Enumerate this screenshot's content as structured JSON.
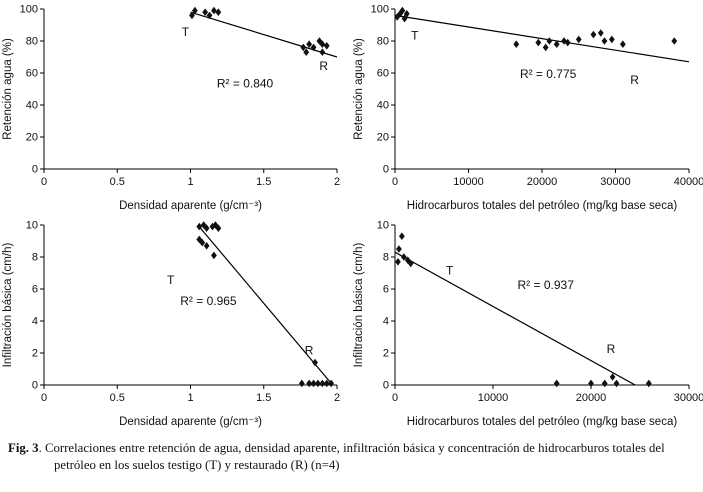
{
  "figure": {
    "caption_bold": "Fig. 3",
    "caption_rest": ".  Correlaciones entre retención de agua, densidad aparente, infiltración básica y concentración de hidrocarburos totales del petróleo en los suelos testigo (T) y restaurado (R) (n=4)"
  },
  "chart_data": [
    {
      "name": "retencion-agua-vs-densidad",
      "type": "scatter",
      "xlabel": "Densidad aparente (g/cm⁻³)",
      "ylabel": "Retención agua (%)",
      "xlim": [
        0,
        2
      ],
      "ylim": [
        0,
        100
      ],
      "grid": false,
      "legend": "none",
      "marker": "diamond",
      "marker_color": "#111111",
      "xticks": [
        {
          "v": 0,
          "l": "0"
        },
        {
          "v": 0.5,
          "l": "0.5"
        },
        {
          "v": 1,
          "l": "1"
        },
        {
          "v": 1.5,
          "l": "1.5"
        },
        {
          "v": 2,
          "l": "2"
        }
      ],
      "yticks": [
        {
          "v": 0,
          "l": "0"
        },
        {
          "v": 20,
          "l": "20"
        },
        {
          "v": 40,
          "l": "40"
        },
        {
          "v": 60,
          "l": "60"
        },
        {
          "v": 80,
          "l": "80"
        },
        {
          "v": 100,
          "l": "100"
        }
      ],
      "points": [
        [
          1.01,
          96
        ],
        [
          1.03,
          99
        ],
        [
          1.1,
          98
        ],
        [
          1.13,
          96
        ],
        [
          1.16,
          99
        ],
        [
          1.19,
          98
        ],
        [
          1.77,
          76
        ],
        [
          1.79,
          73
        ],
        [
          1.81,
          78
        ],
        [
          1.84,
          76
        ],
        [
          1.88,
          80
        ],
        [
          1.9,
          78
        ],
        [
          1.9,
          73
        ],
        [
          1.93,
          77
        ]
      ],
      "trend": [
        1.0,
        98,
        2.0,
        70
      ],
      "r2": {
        "text": "R² = 0.840",
        "x": 1.18,
        "y": 51
      },
      "labels": [
        {
          "text": "T",
          "x": 0.94,
          "y": 83
        },
        {
          "text": "R",
          "x": 1.88,
          "y": 62
        }
      ]
    },
    {
      "name": "retencion-agua-vs-hidrocarburos",
      "type": "scatter",
      "xlabel": "Hidrocarburos totales del petróleo (mg/kg base seca)",
      "ylabel": "Retención agua (%)",
      "xlim": [
        0,
        40000
      ],
      "ylim": [
        0,
        100
      ],
      "grid": false,
      "legend": "none",
      "marker": "diamond",
      "marker_color": "#111111",
      "xticks": [
        {
          "v": 0,
          "l": "0"
        },
        {
          "v": 10000,
          "l": "10000"
        },
        {
          "v": 20000,
          "l": "20000"
        },
        {
          "v": 30000,
          "l": "30000"
        },
        {
          "v": 40000,
          "l": "40000"
        }
      ],
      "yticks": [
        {
          "v": 0,
          "l": "0"
        },
        {
          "v": 20,
          "l": "20"
        },
        {
          "v": 40,
          "l": "40"
        },
        {
          "v": 60,
          "l": "60"
        },
        {
          "v": 80,
          "l": "80"
        },
        {
          "v": 100,
          "l": "100"
        }
      ],
      "points": [
        [
          300,
          95
        ],
        [
          700,
          97
        ],
        [
          1000,
          99
        ],
        [
          1300,
          94
        ],
        [
          1600,
          97
        ],
        [
          16500,
          78
        ],
        [
          19500,
          79
        ],
        [
          20500,
          76
        ],
        [
          21000,
          80
        ],
        [
          22000,
          78
        ],
        [
          23000,
          80
        ],
        [
          23500,
          79
        ],
        [
          25000,
          81
        ],
        [
          27000,
          84
        ],
        [
          28000,
          85
        ],
        [
          28500,
          80
        ],
        [
          29500,
          81
        ],
        [
          31000,
          78
        ],
        [
          38000,
          80
        ]
      ],
      "trend": [
        0,
        96,
        40000,
        67
      ],
      "r2": {
        "text": "R² = 0.775",
        "x": 17000,
        "y": 57
      },
      "labels": [
        {
          "text": "T",
          "x": 2200,
          "y": 81
        },
        {
          "text": "R",
          "x": 32000,
          "y": 53
        }
      ]
    },
    {
      "name": "infiltracion-vs-densidad",
      "type": "scatter",
      "xlabel": "Densidad aparente (g/cm⁻³)",
      "ylabel": "Infiltración básica (cm/h)",
      "xlim": [
        0,
        2
      ],
      "ylim": [
        0,
        10
      ],
      "grid": false,
      "legend": "none",
      "marker": "diamond",
      "marker_color": "#111111",
      "xticks": [
        {
          "v": 0,
          "l": "0"
        },
        {
          "v": 0.5,
          "l": "0.5"
        },
        {
          "v": 1,
          "l": "1"
        },
        {
          "v": 1.5,
          "l": "1.5"
        },
        {
          "v": 2,
          "l": "2"
        }
      ],
      "yticks": [
        {
          "v": 0,
          "l": "0"
        },
        {
          "v": 2,
          "l": "2"
        },
        {
          "v": 4,
          "l": "4"
        },
        {
          "v": 6,
          "l": "6"
        },
        {
          "v": 8,
          "l": "8"
        },
        {
          "v": 10,
          "l": "10"
        }
      ],
      "points": [
        [
          1.06,
          9.9
        ],
        [
          1.09,
          10
        ],
        [
          1.11,
          9.8
        ],
        [
          1.15,
          9.9
        ],
        [
          1.17,
          10
        ],
        [
          1.19,
          9.8
        ],
        [
          1.06,
          9.1
        ],
        [
          1.08,
          8.9
        ],
        [
          1.11,
          8.7
        ],
        [
          1.16,
          8.1
        ],
        [
          1.76,
          0.1
        ],
        [
          1.81,
          0.1
        ],
        [
          1.84,
          0.1
        ],
        [
          1.87,
          0.1
        ],
        [
          1.9,
          0.1
        ],
        [
          1.93,
          0.1
        ],
        [
          1.96,
          0.1
        ],
        [
          1.85,
          1.4
        ]
      ],
      "trend": [
        1.05,
        10,
        1.97,
        0
      ],
      "r2": {
        "text": "R² = 0.965",
        "x": 0.93,
        "y": 5.0
      },
      "labels": [
        {
          "text": "T",
          "x": 0.84,
          "y": 6.3
        },
        {
          "text": "R",
          "x": 1.78,
          "y": 1.9
        }
      ]
    },
    {
      "name": "infiltracion-vs-hidrocarburos",
      "type": "scatter",
      "xlabel": "Hidrocarburos totales del petróleo (mg/kg base seca)",
      "ylabel": "Infiltración básica (cm/h)",
      "xlim": [
        0,
        30000
      ],
      "ylim": [
        0,
        10
      ],
      "grid": false,
      "legend": "none",
      "marker": "diamond",
      "marker_color": "#111111",
      "xticks": [
        {
          "v": 0,
          "l": "0"
        },
        {
          "v": 10000,
          "l": "10000"
        },
        {
          "v": 20000,
          "l": "20000"
        },
        {
          "v": 30000,
          "l": "30000"
        }
      ],
      "yticks": [
        {
          "v": 0,
          "l": "0"
        },
        {
          "v": 2,
          "l": "2"
        },
        {
          "v": 4,
          "l": "4"
        },
        {
          "v": 6,
          "l": "6"
        },
        {
          "v": 8,
          "l": "8"
        },
        {
          "v": 10,
          "l": "10"
        }
      ],
      "points": [
        [
          700,
          9.3
        ],
        [
          400,
          8.5
        ],
        [
          300,
          7.7
        ],
        [
          900,
          8.0
        ],
        [
          1300,
          7.8
        ],
        [
          1600,
          7.6
        ],
        [
          16500,
          0.1
        ],
        [
          20000,
          0.1
        ],
        [
          21400,
          0.1
        ],
        [
          22200,
          0.5
        ],
        [
          22600,
          0.1
        ],
        [
          25900,
          0.1
        ]
      ],
      "trend": [
        0,
        8.3,
        24500,
        0
      ],
      "r2": {
        "text": "R² = 0.937",
        "x": 12500,
        "y": 6.0
      },
      "labels": [
        {
          "text": "T",
          "x": 5200,
          "y": 6.9
        },
        {
          "text": "R",
          "x": 21600,
          "y": 2.0
        }
      ]
    }
  ]
}
